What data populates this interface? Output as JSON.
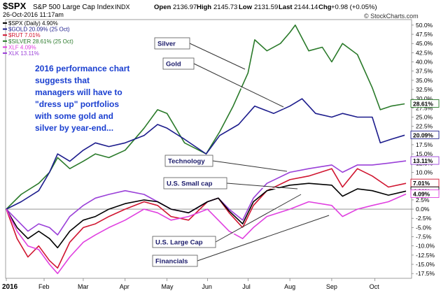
{
  "header": {
    "symbol": "$SPX",
    "index_name": "S&P 500 Large Cap Index",
    "exchange": "INDX",
    "date_time": "26-Oct-2016 11:17am",
    "open_label": "Open",
    "open": "2136.97",
    "high_label": "High",
    "high": "2145.73",
    "low_label": "Low",
    "low": "2131.59",
    "last_label": "Last",
    "last": "2144.14",
    "change_label": "Chg",
    "change": "+0.98 (+0.05%)",
    "watermark": "© StockCharts.com"
  },
  "legend": [
    {
      "text": "$SPX (Daily) 4.90%",
      "color": "#000000"
    },
    {
      "text": "$GOLD 20.09% (25 Oct)",
      "color": "#1c1c8c"
    },
    {
      "text": "$RUT 7.01%",
      "color": "#d01530"
    },
    {
      "text": "$SILVER 28.61% (25 Oct)",
      "color": "#2a7a2a"
    },
    {
      "text": "XLF 4.09%",
      "color": "#e040e0"
    },
    {
      "text": "XLK 13.11%",
      "color": "#9a40d8"
    }
  ],
  "annotation": {
    "lines": [
      "2016 performance chart",
      "suggests that",
      "managers will have to",
      "\"dress up\" portfolios",
      "with some gold and",
      "silver by year-end..."
    ],
    "color": "#1a3fd0"
  },
  "callouts": [
    {
      "label": "Silver"
    },
    {
      "label": "Gold"
    },
    {
      "label": "Technology"
    },
    {
      "label": "U.S. Small cap"
    },
    {
      "label": "U.S. Large Cap"
    },
    {
      "label": "Financials"
    }
  ],
  "end_labels": [
    {
      "text": "28.61%",
      "value": 28.61,
      "color": "#2a7a2a"
    },
    {
      "text": "20.09%",
      "value": 20.09,
      "color": "#1c1c8c"
    },
    {
      "text": "13.11%",
      "value": 13.11,
      "color": "#9a40d8"
    },
    {
      "text": "7.01%",
      "value": 7.01,
      "color": "#d01530"
    },
    {
      "text": "4.90%",
      "value": 4.9,
      "color": "#000000"
    },
    {
      "text": "4.09%",
      "value": 4.09,
      "color": "#e040e0"
    }
  ],
  "chart_data": {
    "type": "line",
    "title": "$SPX S&P 500 Large Cap Index",
    "xlabel": "",
    "ylabel": "",
    "x_tick_labels": [
      "2016",
      "Feb",
      "Mar",
      "Apr",
      "May",
      "Jun",
      "Jul",
      "Aug",
      "Sep",
      "Oct"
    ],
    "y_tick_labels": [
      "-17.5%",
      "-15.0%",
      "-12.5%",
      "-10.0%",
      "-7.5%",
      "-5.0%",
      "-2.5%",
      "0.0%",
      "2.5%",
      "5.0%",
      "7.5%",
      "10.0%",
      "12.5%",
      "15.0%",
      "17.5%",
      "20.0%",
      "22.5%",
      "25.0%",
      "27.5%",
      "30.0%",
      "32.5%",
      "35.0%",
      "37.5%",
      "40.0%",
      "42.5%",
      "45.0%",
      "47.5%",
      "50.0%"
    ],
    "ylim": [
      -18.8,
      51.5
    ],
    "xlim": [
      "2016-01-04",
      "2016-10-26"
    ],
    "grid": false,
    "legend_position": "top-left",
    "series": [
      {
        "name": "$SPX",
        "color": "#000000",
        "x": [
          "2016-01-04",
          "2016-01-12",
          "2016-01-20",
          "2016-01-28",
          "2016-02-05",
          "2016-02-11",
          "2016-02-20",
          "2016-03-01",
          "2016-03-10",
          "2016-03-20",
          "2016-04-01",
          "2016-04-15",
          "2016-04-25",
          "2016-05-05",
          "2016-05-18",
          "2016-06-01",
          "2016-06-09",
          "2016-06-17",
          "2016-06-27",
          "2016-07-05",
          "2016-07-15",
          "2016-08-01",
          "2016-08-15",
          "2016-09-01",
          "2016-09-09",
          "2016-09-20",
          "2016-10-01",
          "2016-10-13",
          "2016-10-26"
        ],
        "values": [
          0,
          -5,
          -8,
          -6,
          -8,
          -10.5,
          -6,
          -3,
          -2,
          0,
          1.5,
          2.5,
          2,
          0,
          -1,
          2,
          3,
          -0.5,
          -4,
          2,
          5,
          6.5,
          7,
          6.5,
          3.5,
          5.5,
          5,
          3.8,
          4.9
        ]
      },
      {
        "name": "$GOLD",
        "color": "#1c1c8c",
        "x": [
          "2016-01-04",
          "2016-01-15",
          "2016-01-28",
          "2016-02-05",
          "2016-02-11",
          "2016-02-20",
          "2016-03-01",
          "2016-03-10",
          "2016-03-20",
          "2016-04-01",
          "2016-04-15",
          "2016-04-25",
          "2016-05-02",
          "2016-05-15",
          "2016-05-31",
          "2016-06-10",
          "2016-06-24",
          "2016-07-06",
          "2016-07-20",
          "2016-08-01",
          "2016-08-10",
          "2016-08-20",
          "2016-09-01",
          "2016-09-09",
          "2016-09-20",
          "2016-10-01",
          "2016-10-07",
          "2016-10-15",
          "2016-10-25"
        ],
        "values": [
          0,
          2,
          5,
          10,
          15,
          13,
          16,
          18,
          17,
          18,
          20,
          23,
          22,
          19,
          15,
          20,
          23,
          28,
          26,
          28,
          30,
          26,
          25,
          26,
          25,
          25,
          18,
          19,
          20.09
        ]
      },
      {
        "name": "$RUT",
        "color": "#d01530",
        "x": [
          "2016-01-04",
          "2016-01-12",
          "2016-01-20",
          "2016-01-28",
          "2016-02-05",
          "2016-02-11",
          "2016-02-20",
          "2016-03-01",
          "2016-03-10",
          "2016-03-20",
          "2016-04-01",
          "2016-04-15",
          "2016-04-25",
          "2016-05-05",
          "2016-05-18",
          "2016-06-01",
          "2016-06-09",
          "2016-06-17",
          "2016-06-27",
          "2016-07-05",
          "2016-07-15",
          "2016-08-01",
          "2016-08-15",
          "2016-09-01",
          "2016-09-09",
          "2016-09-20",
          "2016-10-01",
          "2016-10-13",
          "2016-10-26"
        ],
        "values": [
          0,
          -8,
          -13,
          -10,
          -14,
          -16,
          -9,
          -5,
          -4,
          -2,
          0,
          2,
          1,
          -2,
          -3,
          2,
          3,
          -1,
          -5,
          1,
          5,
          8,
          9,
          11,
          6,
          11,
          9,
          6,
          7.01
        ]
      },
      {
        "name": "$SILVER",
        "color": "#2a7a2a",
        "x": [
          "2016-01-04",
          "2016-01-15",
          "2016-01-28",
          "2016-02-05",
          "2016-02-11",
          "2016-02-20",
          "2016-03-01",
          "2016-03-10",
          "2016-03-20",
          "2016-04-01",
          "2016-04-15",
          "2016-04-25",
          "2016-05-02",
          "2016-05-15",
          "2016-05-31",
          "2016-06-10",
          "2016-06-20",
          "2016-07-01",
          "2016-07-06",
          "2016-07-15",
          "2016-07-25",
          "2016-08-01",
          "2016-08-05",
          "2016-08-15",
          "2016-08-25",
          "2016-09-01",
          "2016-09-09",
          "2016-09-20",
          "2016-10-01",
          "2016-10-07",
          "2016-10-15",
          "2016-10-25"
        ],
        "values": [
          0,
          4,
          7,
          10,
          14,
          11,
          13,
          15,
          14,
          16,
          22,
          27,
          26,
          18,
          15,
          21,
          28,
          37,
          46,
          43,
          45,
          48,
          50,
          43,
          44,
          40,
          45,
          42,
          33,
          27,
          28,
          28.61
        ]
      },
      {
        "name": "XLF",
        "color": "#e040e0",
        "x": [
          "2016-01-04",
          "2016-01-12",
          "2016-01-20",
          "2016-01-28",
          "2016-02-05",
          "2016-02-11",
          "2016-02-20",
          "2016-03-01",
          "2016-03-10",
          "2016-03-20",
          "2016-04-01",
          "2016-04-15",
          "2016-04-25",
          "2016-05-05",
          "2016-05-18",
          "2016-06-01",
          "2016-06-09",
          "2016-06-17",
          "2016-06-27",
          "2016-07-05",
          "2016-07-15",
          "2016-08-01",
          "2016-08-15",
          "2016-09-01",
          "2016-09-09",
          "2016-09-20",
          "2016-10-01",
          "2016-10-13",
          "2016-10-26"
        ],
        "values": [
          0,
          -6,
          -10,
          -11,
          -15,
          -17.5,
          -13,
          -9,
          -7,
          -5,
          -3,
          0,
          -1,
          -3,
          -2,
          0,
          -3,
          -6,
          -8,
          -5,
          -2,
          0,
          2,
          1,
          -2,
          0,
          1,
          2,
          4.09
        ]
      },
      {
        "name": "XLK",
        "color": "#9a40d8",
        "x": [
          "2016-01-04",
          "2016-01-12",
          "2016-01-20",
          "2016-01-28",
          "2016-02-05",
          "2016-02-11",
          "2016-02-20",
          "2016-03-01",
          "2016-03-10",
          "2016-03-20",
          "2016-04-01",
          "2016-04-15",
          "2016-04-25",
          "2016-05-05",
          "2016-05-18",
          "2016-06-01",
          "2016-06-09",
          "2016-06-17",
          "2016-06-27",
          "2016-07-05",
          "2016-07-15",
          "2016-08-01",
          "2016-08-15",
          "2016-09-01",
          "2016-09-09",
          "2016-09-20",
          "2016-10-01",
          "2016-10-13",
          "2016-10-26"
        ],
        "values": [
          0,
          -3,
          -6,
          -4,
          -5,
          -7,
          -2,
          1,
          3,
          4,
          5,
          4,
          2,
          0,
          -1,
          2,
          3,
          0,
          -3,
          3,
          7,
          10,
          11,
          12,
          10,
          12,
          12,
          12.5,
          13.11
        ]
      }
    ]
  }
}
